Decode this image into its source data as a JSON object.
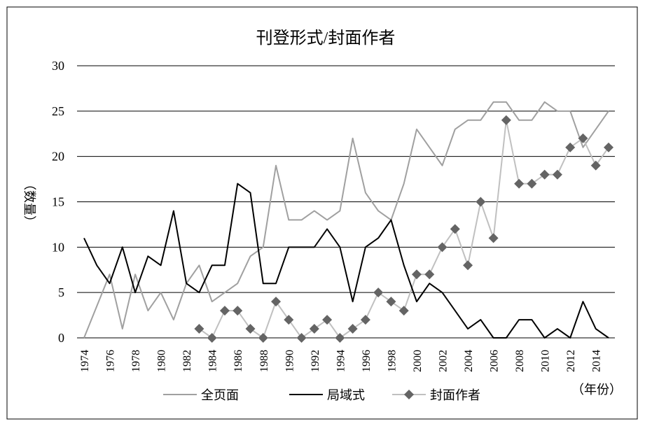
{
  "chart_data": {
    "type": "line",
    "title": "刊登形式/封面作者",
    "xlabel": "（年份）",
    "ylabel": "（数量）",
    "ylim": [
      0,
      30
    ],
    "yticks": [
      0,
      5,
      10,
      15,
      20,
      25,
      30
    ],
    "grid": true,
    "legend_position": "bottom",
    "x": [
      1974,
      1975,
      1976,
      1977,
      1978,
      1979,
      1980,
      1981,
      1982,
      1983,
      1984,
      1985,
      1986,
      1987,
      1988,
      1989,
      1990,
      1991,
      1992,
      1993,
      1994,
      1995,
      1996,
      1997,
      1998,
      1999,
      2000,
      2001,
      2002,
      2003,
      2004,
      2005,
      2006,
      2007,
      2008,
      2009,
      2010,
      2011,
      2012,
      2013,
      2014,
      2015
    ],
    "xticks": [
      "1974",
      "1976",
      "1978",
      "1980",
      "1982",
      "1984",
      "1986",
      "1988",
      "1990",
      "1992",
      "1994",
      "1996",
      "1998",
      "2000",
      "2002",
      "2004",
      "2006",
      "2008",
      "2010",
      "2012",
      "2014"
    ],
    "series": [
      {
        "name": "全页面",
        "color": "#a0a0a0",
        "marker": "none",
        "values": [
          0,
          3.5,
          7,
          1,
          7,
          3,
          5,
          2,
          6,
          8,
          4,
          5,
          6,
          9,
          10,
          19,
          13,
          13,
          14,
          13,
          14,
          22,
          16,
          14,
          13,
          17,
          23,
          21,
          19,
          23,
          24,
          24,
          26,
          26,
          24,
          24,
          26,
          25,
          25,
          21,
          23,
          25
        ]
      },
      {
        "name": "局域式",
        "color": "#000000",
        "marker": "none",
        "values": [
          11,
          8,
          6,
          10,
          5,
          9,
          8,
          14,
          6,
          5,
          8,
          8,
          17,
          16,
          6,
          6,
          10,
          10,
          10,
          12,
          10,
          4,
          10,
          11,
          13,
          8,
          4,
          6,
          5,
          3,
          1,
          2,
          0,
          0,
          2,
          2,
          0,
          1,
          0,
          4,
          1,
          0
        ]
      },
      {
        "name": "封面作者",
        "color": "#c0c0c0",
        "marker": "diamond",
        "marker_color": "#646464",
        "values": [
          null,
          null,
          null,
          null,
          null,
          null,
          null,
          null,
          null,
          1,
          0,
          3,
          3,
          1,
          0,
          4,
          2,
          0,
          1,
          2,
          0,
          1,
          2,
          5,
          4,
          3,
          7,
          7,
          10,
          12,
          8,
          15,
          11,
          24,
          17,
          17,
          18,
          18,
          21,
          22,
          19,
          21
        ]
      }
    ]
  }
}
